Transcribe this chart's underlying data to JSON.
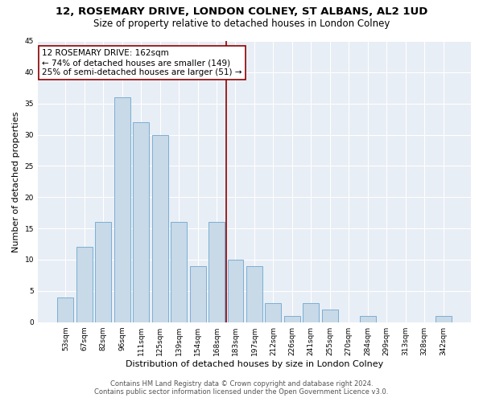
{
  "title": "12, ROSEMARY DRIVE, LONDON COLNEY, ST ALBANS, AL2 1UD",
  "subtitle": "Size of property relative to detached houses in London Colney",
  "xlabel": "Distribution of detached houses by size in London Colney",
  "ylabel": "Number of detached properties",
  "categories": [
    "53sqm",
    "67sqm",
    "82sqm",
    "96sqm",
    "111sqm",
    "125sqm",
    "139sqm",
    "154sqm",
    "168sqm",
    "183sqm",
    "197sqm",
    "212sqm",
    "226sqm",
    "241sqm",
    "255sqm",
    "270sqm",
    "284sqm",
    "299sqm",
    "313sqm",
    "328sqm",
    "342sqm"
  ],
  "values": [
    4,
    12,
    16,
    36,
    32,
    30,
    16,
    9,
    16,
    10,
    9,
    3,
    1,
    3,
    2,
    0,
    1,
    0,
    0,
    0,
    1
  ],
  "bar_color": "#c8d9e8",
  "bar_edge_color": "#7bafd4",
  "property_line_x": 8.5,
  "property_line_color": "#8b0000",
  "annotation_line1": "12 ROSEMARY DRIVE: 162sqm",
  "annotation_line2": "← 74% of detached houses are smaller (149)",
  "annotation_line3": "25% of semi-detached houses are larger (51) →",
  "annotation_box_color": "#8b0000",
  "annotation_fill": "#ffffff",
  "ylim": [
    0,
    45
  ],
  "yticks": [
    0,
    5,
    10,
    15,
    20,
    25,
    30,
    35,
    40,
    45
  ],
  "plot_bg_color": "#e8eef5",
  "footer_line1": "Contains HM Land Registry data © Crown copyright and database right 2024.",
  "footer_line2": "Contains public sector information licensed under the Open Government Licence v3.0.",
  "title_fontsize": 9.5,
  "subtitle_fontsize": 8.5,
  "xlabel_fontsize": 8,
  "ylabel_fontsize": 8,
  "tick_fontsize": 6.5,
  "annotation_fontsize": 7.5,
  "footer_fontsize": 6
}
